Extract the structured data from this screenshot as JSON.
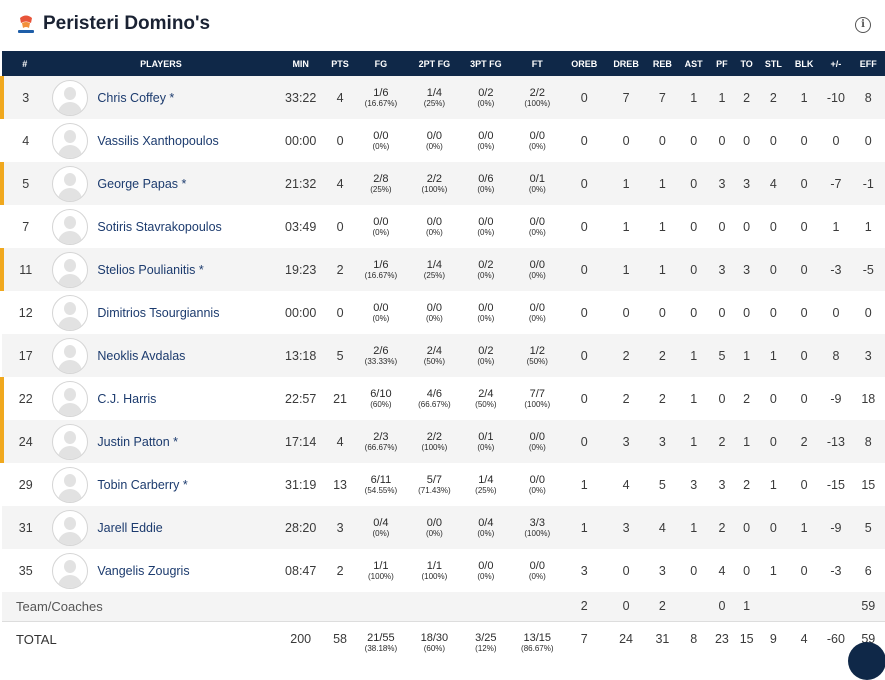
{
  "team": {
    "name": "Peristeri Domino's"
  },
  "columns": [
    "#",
    "PLAYERS",
    "MIN",
    "PTS",
    "FG",
    "2PT FG",
    "3PT FG",
    "FT",
    "OREB",
    "DREB",
    "REB",
    "AST",
    "PF",
    "TO",
    "STL",
    "BLK",
    "+/-",
    "EFF"
  ],
  "players": [
    {
      "num": "3",
      "name": "Chris Coffey *",
      "starter": true,
      "min": "33:22",
      "pts": "4",
      "fg": [
        "1/6",
        "(16.67%)"
      ],
      "fg2": [
        "1/4",
        "(25%)"
      ],
      "fg3": [
        "0/2",
        "(0%)"
      ],
      "ft": [
        "2/2",
        "(100%)"
      ],
      "oreb": "0",
      "dreb": "7",
      "reb": "7",
      "ast": "1",
      "pf": "1",
      "to": "2",
      "stl": "2",
      "blk": "1",
      "pm": "-10",
      "eff": "8"
    },
    {
      "num": "4",
      "name": "Vassilis Xanthopoulos",
      "starter": false,
      "min": "00:00",
      "pts": "0",
      "fg": [
        "0/0",
        "(0%)"
      ],
      "fg2": [
        "0/0",
        "(0%)"
      ],
      "fg3": [
        "0/0",
        "(0%)"
      ],
      "ft": [
        "0/0",
        "(0%)"
      ],
      "oreb": "0",
      "dreb": "0",
      "reb": "0",
      "ast": "0",
      "pf": "0",
      "to": "0",
      "stl": "0",
      "blk": "0",
      "pm": "0",
      "eff": "0"
    },
    {
      "num": "5",
      "name": "George Papas *",
      "starter": true,
      "min": "21:32",
      "pts": "4",
      "fg": [
        "2/8",
        "(25%)"
      ],
      "fg2": [
        "2/2",
        "(100%)"
      ],
      "fg3": [
        "0/6",
        "(0%)"
      ],
      "ft": [
        "0/1",
        "(0%)"
      ],
      "oreb": "0",
      "dreb": "1",
      "reb": "1",
      "ast": "0",
      "pf": "3",
      "to": "3",
      "stl": "4",
      "blk": "0",
      "pm": "-7",
      "eff": "-1"
    },
    {
      "num": "7",
      "name": "Sotiris Stavrakopoulos",
      "starter": false,
      "min": "03:49",
      "pts": "0",
      "fg": [
        "0/0",
        "(0%)"
      ],
      "fg2": [
        "0/0",
        "(0%)"
      ],
      "fg3": [
        "0/0",
        "(0%)"
      ],
      "ft": [
        "0/0",
        "(0%)"
      ],
      "oreb": "0",
      "dreb": "1",
      "reb": "1",
      "ast": "0",
      "pf": "0",
      "to": "0",
      "stl": "0",
      "blk": "0",
      "pm": "1",
      "eff": "1"
    },
    {
      "num": "11",
      "name": "Stelios Poulianitis *",
      "starter": true,
      "min": "19:23",
      "pts": "2",
      "fg": [
        "1/6",
        "(16.67%)"
      ],
      "fg2": [
        "1/4",
        "(25%)"
      ],
      "fg3": [
        "0/2",
        "(0%)"
      ],
      "ft": [
        "0/0",
        "(0%)"
      ],
      "oreb": "0",
      "dreb": "1",
      "reb": "1",
      "ast": "0",
      "pf": "3",
      "to": "3",
      "stl": "0",
      "blk": "0",
      "pm": "-3",
      "eff": "-5"
    },
    {
      "num": "12",
      "name": "Dimitrios Tsourgiannis",
      "starter": false,
      "min": "00:00",
      "pts": "0",
      "fg": [
        "0/0",
        "(0%)"
      ],
      "fg2": [
        "0/0",
        "(0%)"
      ],
      "fg3": [
        "0/0",
        "(0%)"
      ],
      "ft": [
        "0/0",
        "(0%)"
      ],
      "oreb": "0",
      "dreb": "0",
      "reb": "0",
      "ast": "0",
      "pf": "0",
      "to": "0",
      "stl": "0",
      "blk": "0",
      "pm": "0",
      "eff": "0"
    },
    {
      "num": "17",
      "name": "Neoklis Avdalas",
      "starter": false,
      "min": "13:18",
      "pts": "5",
      "fg": [
        "2/6",
        "(33.33%)"
      ],
      "fg2": [
        "2/4",
        "(50%)"
      ],
      "fg3": [
        "0/2",
        "(0%)"
      ],
      "ft": [
        "1/2",
        "(50%)"
      ],
      "oreb": "0",
      "dreb": "2",
      "reb": "2",
      "ast": "1",
      "pf": "5",
      "to": "1",
      "stl": "1",
      "blk": "0",
      "pm": "8",
      "eff": "3"
    },
    {
      "num": "22",
      "name": "C.J. Harris",
      "starter": true,
      "min": "22:57",
      "pts": "21",
      "fg": [
        "6/10",
        "(60%)"
      ],
      "fg2": [
        "4/6",
        "(66.67%)"
      ],
      "fg3": [
        "2/4",
        "(50%)"
      ],
      "ft": [
        "7/7",
        "(100%)"
      ],
      "oreb": "0",
      "dreb": "2",
      "reb": "2",
      "ast": "1",
      "pf": "0",
      "to": "2",
      "stl": "0",
      "blk": "0",
      "pm": "-9",
      "eff": "18"
    },
    {
      "num": "24",
      "name": "Justin Patton *",
      "starter": true,
      "min": "17:14",
      "pts": "4",
      "fg": [
        "2/3",
        "(66.67%)"
      ],
      "fg2": [
        "2/2",
        "(100%)"
      ],
      "fg3": [
        "0/1",
        "(0%)"
      ],
      "ft": [
        "0/0",
        "(0%)"
      ],
      "oreb": "0",
      "dreb": "3",
      "reb": "3",
      "ast": "1",
      "pf": "2",
      "to": "1",
      "stl": "0",
      "blk": "2",
      "pm": "-13",
      "eff": "8"
    },
    {
      "num": "29",
      "name": "Tobin Carberry *",
      "starter": false,
      "min": "31:19",
      "pts": "13",
      "fg": [
        "6/11",
        "(54.55%)"
      ],
      "fg2": [
        "5/7",
        "(71.43%)"
      ],
      "fg3": [
        "1/4",
        "(25%)"
      ],
      "ft": [
        "0/0",
        "(0%)"
      ],
      "oreb": "1",
      "dreb": "4",
      "reb": "5",
      "ast": "3",
      "pf": "3",
      "to": "2",
      "stl": "1",
      "blk": "0",
      "pm": "-15",
      "eff": "15"
    },
    {
      "num": "31",
      "name": "Jarell Eddie",
      "starter": false,
      "min": "28:20",
      "pts": "3",
      "fg": [
        "0/4",
        "(0%)"
      ],
      "fg2": [
        "0/0",
        "(0%)"
      ],
      "fg3": [
        "0/4",
        "(0%)"
      ],
      "ft": [
        "3/3",
        "(100%)"
      ],
      "oreb": "1",
      "dreb": "3",
      "reb": "4",
      "ast": "1",
      "pf": "2",
      "to": "0",
      "stl": "0",
      "blk": "1",
      "pm": "-9",
      "eff": "5"
    },
    {
      "num": "35",
      "name": "Vangelis Zougris",
      "starter": false,
      "min": "08:47",
      "pts": "2",
      "fg": [
        "1/1",
        "(100%)"
      ],
      "fg2": [
        "1/1",
        "(100%)"
      ],
      "fg3": [
        "0/0",
        "(0%)"
      ],
      "ft": [
        "0/0",
        "(0%)"
      ],
      "oreb": "3",
      "dreb": "0",
      "reb": "3",
      "ast": "0",
      "pf": "4",
      "to": "0",
      "stl": "1",
      "blk": "0",
      "pm": "-3",
      "eff": "6"
    }
  ],
  "team_row": {
    "label": "Team/Coaches",
    "oreb": "2",
    "dreb": "0",
    "reb": "2",
    "ast": "",
    "pf": "0",
    "to": "1",
    "stl": "",
    "blk": "",
    "pm": "",
    "eff": "59"
  },
  "totals": {
    "label": "TOTAL",
    "min": "200",
    "pts": "58",
    "fg": [
      "21/55",
      "(38.18%)"
    ],
    "fg2": [
      "18/30",
      "(60%)"
    ],
    "fg3": [
      "3/25",
      "(12%)"
    ],
    "ft": [
      "13/15",
      "(86.67%)"
    ],
    "oreb": "7",
    "dreb": "24",
    "reb": "31",
    "ast": "8",
    "pf": "23",
    "to": "15",
    "stl": "9",
    "blk": "4",
    "pm": "-60",
    "eff": "59"
  },
  "colors": {
    "header_bg": "#0f2848",
    "starter_marker": "#f0a81e",
    "name": "#1c3b6e"
  }
}
